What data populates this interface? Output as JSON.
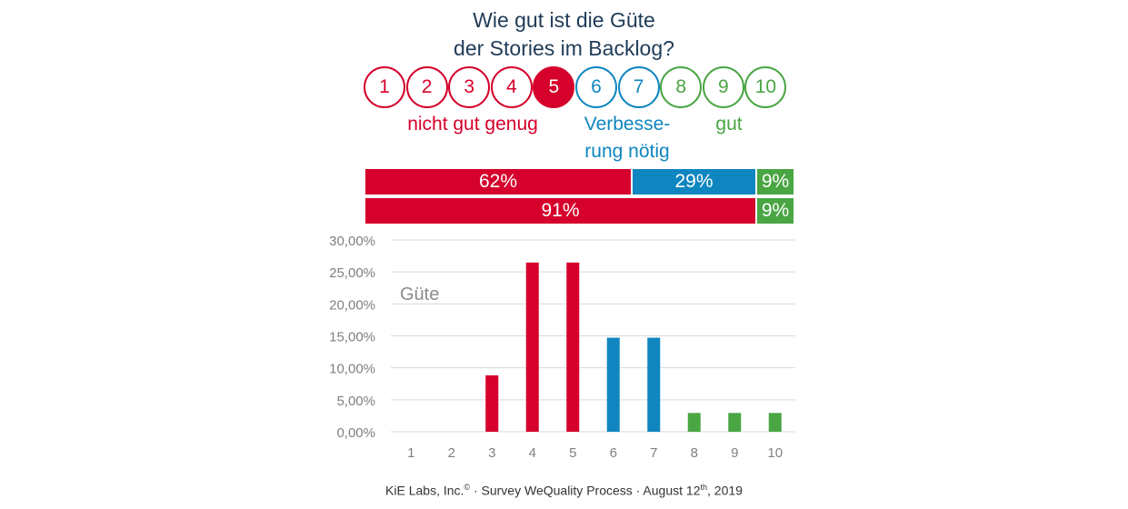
{
  "title": {
    "line1": "Wie gut ist die Güte",
    "line2": "der Stories im Backlog?"
  },
  "colors": {
    "red": "#d5002b",
    "blue": "#0f86bf",
    "green": "#4aa543",
    "grid": "#d9d9d9",
    "axis_text": "#7f7f7f"
  },
  "scale": {
    "selected": "5",
    "items": [
      {
        "label": "1",
        "group": "red"
      },
      {
        "label": "2",
        "group": "red"
      },
      {
        "label": "3",
        "group": "red"
      },
      {
        "label": "4",
        "group": "red"
      },
      {
        "label": "5",
        "group": "red"
      },
      {
        "label": "6",
        "group": "blue"
      },
      {
        "label": "7",
        "group": "blue"
      },
      {
        "label": "8",
        "group": "green"
      },
      {
        "label": "9",
        "group": "green"
      },
      {
        "label": "10",
        "group": "green"
      }
    ],
    "labels": {
      "red": "nicht gut genug",
      "blue_line1": "Verbesse-",
      "blue_line2": "rung nötig",
      "green": "gut"
    }
  },
  "summary_bars": [
    {
      "segments": [
        {
          "label": "62%",
          "value": 62,
          "group": "red"
        },
        {
          "label": "29%",
          "value": 29,
          "group": "blue"
        },
        {
          "label": "9%",
          "value": 9,
          "group": "green"
        }
      ]
    },
    {
      "segments": [
        {
          "label": "91%",
          "value": 91,
          "group": "red"
        },
        {
          "label": "9%",
          "value": 9,
          "group": "green"
        }
      ]
    }
  ],
  "chart_data": {
    "type": "bar",
    "annotation": "Güte",
    "categories": [
      "1",
      "2",
      "3",
      "4",
      "5",
      "6",
      "7",
      "8",
      "9",
      "10"
    ],
    "values": [
      0,
      0,
      8.82,
      26.47,
      26.47,
      14.71,
      14.71,
      2.94,
      2.94,
      2.94
    ],
    "bar_groups": [
      "red",
      "red",
      "red",
      "red",
      "red",
      "blue",
      "blue",
      "green",
      "green",
      "green"
    ],
    "ylim": [
      0,
      30
    ],
    "yticks": [
      "0,00%",
      "5,00%",
      "10,00%",
      "15,00%",
      "20,00%",
      "25,00%",
      "30,00%"
    ],
    "grid": true
  },
  "footer": {
    "prefix": "KiE Labs, Inc.",
    "copyright": "©",
    "middle": " · Survey WeQuality Process · August 12",
    "ordinal": "th",
    "suffix": ", 2019"
  }
}
